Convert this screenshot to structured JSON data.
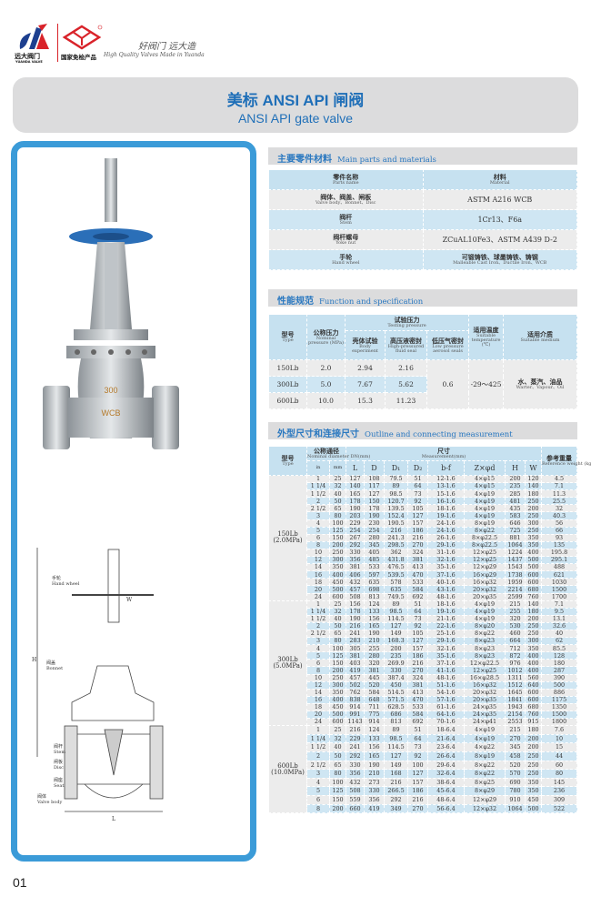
{
  "header": {
    "brand_cn": "远大阀门",
    "brand_en": "YUANDA VALVE",
    "cert_mark": "尧宇",
    "cert_text": "国家免检产品",
    "slogan_cn": "好阀门 远大造",
    "slogan_en": "High Quality Valves Made in Yuanda",
    "brand_color": "#1d3f8f",
    "accent_color": "#d9232a"
  },
  "title": {
    "cn": "美标 ANSI API 闸阀",
    "en": "ANSI API gate valve",
    "color": "#1f6fb8"
  },
  "diagram": {
    "labels": [
      {
        "cn": "手轮",
        "en": "Hand wheel"
      },
      {
        "cn": "阀盖",
        "en": "Bonnet"
      },
      {
        "cn": "阀杆",
        "en": "Stem"
      },
      {
        "cn": "闸板",
        "en": "Disc"
      },
      {
        "cn": "阀座",
        "en": "Seat"
      },
      {
        "cn": "阀体",
        "en": "Valve body"
      }
    ],
    "dims": [
      "H",
      "L",
      "W"
    ]
  },
  "parts": {
    "heading_cn": "主要零件材料",
    "heading_en": "Main parts and materials",
    "columns": [
      {
        "cn": "零件名称",
        "en": "Parts name"
      },
      {
        "cn": "材料",
        "en": "Material"
      }
    ],
    "rows": [
      {
        "cn": "阀体、阀盖、闸板",
        "en": "Valve body、Bonnet、Disc",
        "material": "ASTM A216 WCB"
      },
      {
        "cn": "阀杆",
        "en": "Stem",
        "material": "1Cr13、F6a"
      },
      {
        "cn": "阀杆螺母",
        "en": "Yoke nut",
        "material": "ZCuAL10Fe3、ASTM A439 D-2"
      },
      {
        "cn": "手轮",
        "en": "Hand wheel",
        "material": "可锻铸铁、球墨铸铁、铸钢",
        "material_en": "Malleable Cast Iron、Ductile Iron、WCB"
      }
    ]
  },
  "spec": {
    "heading_cn": "性能规范",
    "heading_en": "Function and specification",
    "col_type": {
      "cn": "型号",
      "en": "Type"
    },
    "col_pressure": {
      "cn": "公称压力",
      "en": "Nominal pressure (MPa)"
    },
    "col_testing": {
      "cn": "试验压力",
      "en": "Testing pressure"
    },
    "col_body": {
      "cn": "壳体试验",
      "en": "Body experiment"
    },
    "col_fluid": {
      "cn": "高压液密封",
      "en": "High-pressured fluid seal"
    },
    "col_air": {
      "cn": "低压气密封",
      "en": "Low pressure aerosol seals"
    },
    "col_temp": {
      "cn": "适用温度",
      "en": "Suitable temperature (℃)"
    },
    "col_medium": {
      "cn": "适用介质",
      "en": "Suitable medium"
    },
    "rows": [
      {
        "type": "150Lb",
        "pressure": "2.0",
        "body": "2.94",
        "fluid": "2.16"
      },
      {
        "type": "300Lb",
        "pressure": "5.0",
        "body": "7.67",
        "fluid": "5.62"
      },
      {
        "type": "600Lb",
        "pressure": "10.0",
        "body": "15.3",
        "fluid": "11.23"
      }
    ],
    "air": "0.6",
    "temp": "-29～425",
    "medium_cn": "水、蒸汽、油品",
    "medium_en": "Warter、Vapour、Oil"
  },
  "outline": {
    "heading_cn": "外型尺寸和连接尺寸",
    "heading_en": "Outline and connecting measurement",
    "col_type": {
      "cn": "型号",
      "en": "Type"
    },
    "col_dn": {
      "cn": "公称通径",
      "en": "Nominal diameter DN(mm)"
    },
    "col_meas": {
      "cn": "尺寸",
      "en": "Measurement(mm)"
    },
    "col_weight": {
      "cn": "参考重量",
      "en": "Reference weight (kg)"
    },
    "sub_cols": [
      "in",
      "mm",
      "L",
      "D",
      "D₁",
      "D₂",
      "b-f",
      "Z×φd",
      "H",
      "W"
    ],
    "groups": [
      {
        "type": "150Lb",
        "mpa": "(2.0MPa)",
        "rows": [
          [
            "1",
            "25",
            "127",
            "108",
            "79.5",
            "51",
            "12-1.6",
            "4×φ15",
            "200",
            "120",
            "4.5"
          ],
          [
            "1 1/4",
            "32",
            "140",
            "117",
            "89",
            "64",
            "13-1.6",
            "4×φ15",
            "235",
            "140",
            "7.1"
          ],
          [
            "1 1/2",
            "40",
            "165",
            "127",
            "98.5",
            "73",
            "15-1.6",
            "4×φ19",
            "285",
            "180",
            "11.3"
          ],
          [
            "2",
            "50",
            "178",
            "150",
            "120.7",
            "92",
            "16-1.6",
            "4×φ19",
            "481",
            "250",
            "25.5"
          ],
          [
            "2 1/2",
            "65",
            "190",
            "178",
            "139.5",
            "105",
            "18-1.6",
            "4×φ19",
            "435",
            "200",
            "32"
          ],
          [
            "3",
            "80",
            "203",
            "190",
            "152.4",
            "127",
            "19-1.6",
            "4×φ19",
            "583",
            "250",
            "40.3"
          ],
          [
            "4",
            "100",
            "229",
            "230",
            "190.5",
            "157",
            "24-1.6",
            "8×φ19",
            "646",
            "300",
            "56"
          ],
          [
            "5",
            "125",
            "254",
            "254",
            "216",
            "186",
            "24-1.6",
            "8×φ22",
            "725",
            "250",
            "66"
          ],
          [
            "6",
            "150",
            "267",
            "280",
            "241.3",
            "216",
            "26-1.6",
            "8×φ22.5",
            "881",
            "350",
            "93"
          ],
          [
            "8",
            "200",
            "292",
            "345",
            "298.5",
            "270",
            "29-1.6",
            "8×φ22.5",
            "1064",
            "350",
            "135"
          ],
          [
            "10",
            "250",
            "330",
            "405",
            "362",
            "324",
            "31-1.6",
            "12×φ25",
            "1224",
            "400",
            "195.8"
          ],
          [
            "12",
            "300",
            "356",
            "485",
            "431.8",
            "381",
            "32-1.6",
            "12×φ25",
            "1437",
            "500",
            "295.1"
          ],
          [
            "14",
            "350",
            "381",
            "533",
            "476.5",
            "413",
            "35-1.6",
            "12×φ29",
            "1543",
            "500",
            "488"
          ],
          [
            "16",
            "400",
            "406",
            "597",
            "539.5",
            "470",
            "37-1.6",
            "16×φ29",
            "1738",
            "600",
            "621"
          ],
          [
            "18",
            "450",
            "432",
            "635",
            "578",
            "533",
            "40-1.6",
            "16×φ32",
            "1959",
            "600",
            "1030"
          ],
          [
            "20",
            "500",
            "457",
            "698",
            "635",
            "584",
            "43-1.6",
            "20×φ32",
            "2214",
            "680",
            "1500"
          ],
          [
            "24",
            "600",
            "508",
            "813",
            "749.5",
            "692",
            "48-1.6",
            "20×φ35",
            "2599",
            "760",
            "1700"
          ]
        ]
      },
      {
        "type": "300Lb",
        "mpa": "(5.0MPa)",
        "rows": [
          [
            "1",
            "25",
            "156",
            "124",
            "89",
            "51",
            "18-1.6",
            "4×φ19",
            "215",
            "140",
            "7.1"
          ],
          [
            "1 1/4",
            "32",
            "178",
            "133",
            "98.5",
            "64",
            "19-1.6",
            "4×φ19",
            "255",
            "180",
            "9.5"
          ],
          [
            "1 1/2",
            "40",
            "190",
            "156",
            "114.5",
            "73",
            "21-1.6",
            "4×φ19",
            "320",
            "200",
            "13.1"
          ],
          [
            "2",
            "50",
            "216",
            "165",
            "127",
            "92",
            "22-1.6",
            "8×φ20",
            "530",
            "250",
            "32.6"
          ],
          [
            "2 1/2",
            "65",
            "241",
            "190",
            "149",
            "105",
            "25-1.6",
            "8×φ22",
            "460",
            "250",
            "40"
          ],
          [
            "3",
            "80",
            "283",
            "210",
            "168.3",
            "127",
            "29-1.6",
            "8×φ23",
            "664",
            "300",
            "62"
          ],
          [
            "4",
            "100",
            "305",
            "255",
            "200",
            "157",
            "32-1.6",
            "8×φ23",
            "712",
            "350",
            "85.5"
          ],
          [
            "5",
            "125",
            "381",
            "280",
            "235",
            "186",
            "35-1.6",
            "8×φ23",
            "872",
            "400",
            "128"
          ],
          [
            "6",
            "150",
            "403",
            "320",
            "269.9",
            "216",
            "37-1.6",
            "12×φ22.5",
            "976",
            "400",
            "180"
          ],
          [
            "8",
            "200",
            "419",
            "381",
            "330",
            "270",
            "41-1.6",
            "12×φ25",
            "1012",
            "400",
            "287"
          ],
          [
            "10",
            "250",
            "457",
            "445",
            "387.4",
            "324",
            "48-1.6",
            "16×φ28.5",
            "1311",
            "560",
            "390"
          ],
          [
            "12",
            "300",
            "502",
            "520",
            "450",
            "381",
            "51-1.6",
            "16×φ32",
            "1512",
            "640",
            "500"
          ],
          [
            "14",
            "350",
            "762",
            "584",
            "514.5",
            "413",
            "54-1.6",
            "20×φ32",
            "1645",
            "600",
            "886"
          ],
          [
            "16",
            "400",
            "838",
            "648",
            "571.5",
            "470",
            "57-1.6",
            "20×φ35",
            "1841",
            "600",
            "1175"
          ],
          [
            "18",
            "450",
            "914",
            "711",
            "628.5",
            "533",
            "61-1.6",
            "24×φ35",
            "1943",
            "680",
            "1350"
          ],
          [
            "20",
            "500",
            "991",
            "775",
            "686",
            "584",
            "64-1.6",
            "24×φ35",
            "2154",
            "760",
            "1500"
          ],
          [
            "24",
            "600",
            "1143",
            "914",
            "813",
            "692",
            "70-1.6",
            "24×φ41",
            "2553",
            "915",
            "1800"
          ]
        ]
      },
      {
        "type": "600Lb",
        "mpa": "(10.0MPa)",
        "rows": [
          [
            "1",
            "25",
            "216",
            "124",
            "89",
            "51",
            "18-6.4",
            "4×φ19",
            "215",
            "180",
            "7.6"
          ],
          [
            "1 1/4",
            "32",
            "229",
            "133",
            "98.5",
            "64",
            "21-6.4",
            "4×φ19",
            "270",
            "200",
            "10"
          ],
          [
            "1 1/2",
            "40",
            "241",
            "156",
            "114.5",
            "73",
            "23-6.4",
            "4×φ22",
            "345",
            "200",
            "15"
          ],
          [
            "2",
            "50",
            "292",
            "165",
            "127",
            "92",
            "26-6.4",
            "8×φ19",
            "458",
            "250",
            "44"
          ],
          [
            "2 1/2",
            "65",
            "330",
            "190",
            "149",
            "100",
            "29-6.4",
            "8×φ22",
            "520",
            "250",
            "60"
          ],
          [
            "3",
            "80",
            "356",
            "210",
            "168",
            "127",
            "32-6.4",
            "8×φ22",
            "570",
            "250",
            "80"
          ],
          [
            "4",
            "100",
            "432",
            "273",
            "216",
            "157",
            "38-6.4",
            "8×φ25",
            "690",
            "350",
            "145"
          ],
          [
            "5",
            "125",
            "508",
            "330",
            "266.5",
            "186",
            "45-6.4",
            "8×φ29",
            "780",
            "350",
            "236"
          ],
          [
            "6",
            "150",
            "559",
            "356",
            "292",
            "216",
            "48-6.4",
            "12×φ29",
            "910",
            "450",
            "309"
          ],
          [
            "8",
            "200",
            "660",
            "419",
            "349",
            "270",
            "56-6.4",
            "12×φ32",
            "1064",
            "500",
            "522"
          ]
        ]
      }
    ]
  },
  "page_number": "01"
}
